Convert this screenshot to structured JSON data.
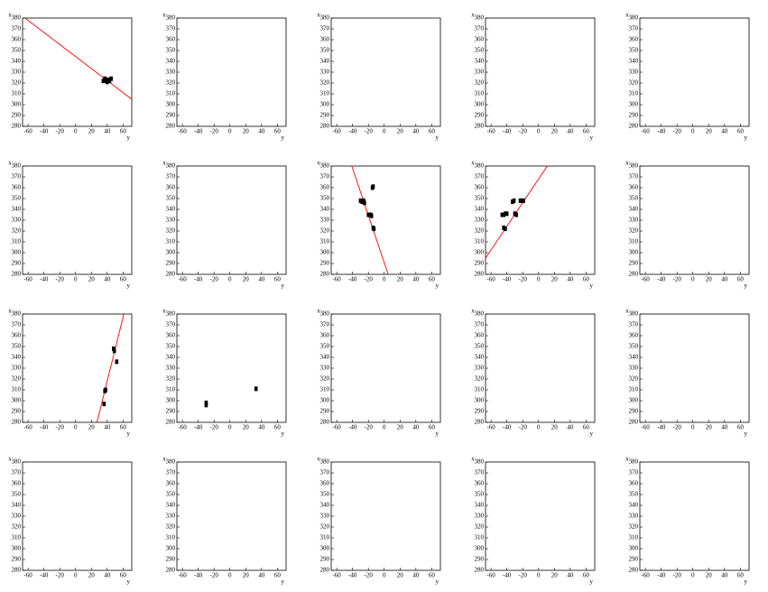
{
  "chart_data": [
    {
      "type": "scatter",
      "xlabel": "y",
      "ylabel": "x",
      "xlim": [
        -67,
        71
      ],
      "ylim": [
        280,
        380
      ],
      "xticks": [
        -60,
        -40,
        -20,
        0,
        20,
        40,
        60
      ],
      "yticks": [
        280,
        290,
        300,
        310,
        320,
        330,
        340,
        350,
        360,
        370,
        380
      ],
      "color": "#000000",
      "fit_color": "#ff0000",
      "points": {
        "x": [
          35,
          37,
          39,
          41,
          43,
          45,
          40
        ],
        "y": [
          322,
          324,
          322,
          323,
          322,
          324,
          321
        ]
      },
      "fit": {
        "x": [
          -64,
          71
        ],
        "y": [
          380,
          305
        ]
      }
    },
    {
      "type": "scatter",
      "xlabel": "y",
      "ylabel": "x",
      "xlim": [
        -67,
        71
      ],
      "ylim": [
        280,
        380
      ],
      "xticks": [
        -60,
        -40,
        -20,
        0,
        20,
        40,
        60
      ],
      "yticks": [
        280,
        290,
        300,
        310,
        320,
        330,
        340,
        350,
        360,
        370,
        380
      ],
      "color": "#000000",
      "points": {
        "x": [],
        "y": []
      }
    },
    {
      "type": "scatter",
      "xlabel": "y",
      "ylabel": "x",
      "xlim": [
        -67,
        71
      ],
      "ylim": [
        280,
        380
      ],
      "xticks": [
        -60,
        -40,
        -20,
        0,
        20,
        40,
        60
      ],
      "yticks": [
        280,
        290,
        300,
        310,
        320,
        330,
        340,
        350,
        360,
        370,
        380
      ],
      "color": "#000000",
      "points": {
        "x": [],
        "y": []
      }
    },
    {
      "type": "scatter",
      "xlabel": "y",
      "ylabel": "x",
      "xlim": [
        -67,
        71
      ],
      "ylim": [
        280,
        380
      ],
      "xticks": [
        -60,
        -40,
        -20,
        0,
        20,
        40,
        60
      ],
      "yticks": [
        280,
        290,
        300,
        310,
        320,
        330,
        340,
        350,
        360,
        370,
        380
      ],
      "color": "#000000",
      "points": {
        "x": [],
        "y": []
      }
    },
    {
      "type": "scatter",
      "xlabel": "y",
      "ylabel": "x",
      "xlim": [
        -67,
        71
      ],
      "ylim": [
        280,
        380
      ],
      "xticks": [
        -60,
        -40,
        -20,
        0,
        20,
        40,
        60
      ],
      "yticks": [
        280,
        290,
        300,
        310,
        320,
        330,
        340,
        350,
        360,
        370,
        380
      ],
      "color": "#000000",
      "points": {
        "x": [],
        "y": []
      }
    },
    {
      "type": "scatter",
      "xlabel": "y",
      "ylabel": "x",
      "xlim": [
        -67,
        71
      ],
      "ylim": [
        280,
        380
      ],
      "xticks": [
        -60,
        -40,
        -20,
        0,
        20,
        40,
        60
      ],
      "yticks": [
        280,
        290,
        300,
        310,
        320,
        330,
        340,
        350,
        360,
        370,
        380
      ],
      "color": "#000000",
      "points": {
        "x": [],
        "y": []
      }
    },
    {
      "type": "scatter",
      "xlabel": "y",
      "ylabel": "x",
      "xlim": [
        -67,
        71
      ],
      "ylim": [
        280,
        380
      ],
      "xticks": [
        -60,
        -40,
        -20,
        0,
        20,
        40,
        60
      ],
      "yticks": [
        280,
        290,
        300,
        310,
        320,
        330,
        340,
        350,
        360,
        370,
        380
      ],
      "color": "#000000",
      "points": {
        "x": [],
        "y": []
      }
    },
    {
      "type": "scatter",
      "xlabel": "y",
      "ylabel": "x",
      "xlim": [
        -67,
        71
      ],
      "ylim": [
        280,
        380
      ],
      "xticks": [
        -60,
        -40,
        -20,
        0,
        20,
        40,
        60
      ],
      "yticks": [
        280,
        290,
        300,
        310,
        320,
        330,
        340,
        350,
        360,
        370,
        380
      ],
      "color": "#000000",
      "fit_color": "#ff0000",
      "points": {
        "x": [
          -30,
          -28,
          -26,
          -25,
          -15,
          -14,
          -20,
          -17,
          -16,
          -14,
          -13
        ],
        "y": [
          348,
          347,
          348,
          346,
          360,
          361,
          335,
          335,
          334,
          323,
          322
        ]
      },
      "fit": {
        "x": [
          -41,
          5
        ],
        "y": [
          380,
          280
        ]
      }
    },
    {
      "type": "scatter",
      "xlabel": "y",
      "ylabel": "x",
      "xlim": [
        -67,
        71
      ],
      "ylim": [
        280,
        380
      ],
      "xticks": [
        -60,
        -40,
        -20,
        0,
        20,
        40,
        60
      ],
      "yticks": [
        280,
        290,
        300,
        310,
        320,
        330,
        340,
        350,
        360,
        370,
        380
      ],
      "color": "#000000",
      "fit_color": "#ff0000",
      "points": {
        "x": [
          -46,
          -44,
          -42,
          -40,
          -44,
          -42,
          -33,
          -31,
          -30,
          -28,
          -23,
          -21,
          -19
        ],
        "y": [
          335,
          335,
          336,
          336,
          323,
          322,
          347,
          348,
          336,
          335,
          348,
          348,
          348
        ]
      },
      "fit": {
        "x": [
          -67,
          11
        ],
        "y": [
          295,
          380
        ]
      }
    },
    {
      "type": "scatter",
      "xlabel": "y",
      "ylabel": "x",
      "xlim": [
        -67,
        71
      ],
      "ylim": [
        280,
        380
      ],
      "xticks": [
        -60,
        -40,
        -20,
        0,
        20,
        40,
        60
      ],
      "yticks": [
        280,
        290,
        300,
        310,
        320,
        330,
        340,
        350,
        360,
        370,
        380
      ],
      "color": "#000000",
      "points": {
        "x": [],
        "y": []
      }
    },
    {
      "type": "scatter",
      "xlabel": "y",
      "ylabel": "x",
      "xlim": [
        -67,
        71
      ],
      "ylim": [
        280,
        380
      ],
      "xticks": [
        -60,
        -40,
        -20,
        0,
        20,
        40,
        60
      ],
      "yticks": [
        280,
        290,
        300,
        310,
        320,
        330,
        340,
        350,
        360,
        370,
        380
      ],
      "color": "#000000",
      "fit_color": "#ff0000",
      "points": {
        "x": [
          36,
          38,
          37,
          48,
          49,
          52
        ],
        "y": [
          297,
          310,
          309,
          348,
          346,
          336
        ]
      },
      "fit": {
        "x": [
          27,
          61
        ],
        "y": [
          280,
          380
        ]
      }
    },
    {
      "type": "scatter",
      "xlabel": "y",
      "ylabel": "x",
      "xlim": [
        -67,
        71
      ],
      "ylim": [
        280,
        380
      ],
      "xticks": [
        -60,
        -40,
        -20,
        0,
        20,
        40,
        60
      ],
      "yticks": [
        280,
        290,
        300,
        310,
        320,
        330,
        340,
        350,
        360,
        370,
        380
      ],
      "color": "#000000",
      "points": {
        "x": [
          -30,
          -30,
          33
        ],
        "y": [
          296,
          298,
          311
        ]
      }
    },
    {
      "type": "scatter",
      "xlabel": "y",
      "ylabel": "x",
      "xlim": [
        -67,
        71
      ],
      "ylim": [
        280,
        380
      ],
      "xticks": [
        -60,
        -40,
        -20,
        0,
        20,
        40,
        60
      ],
      "yticks": [
        280,
        290,
        300,
        310,
        320,
        330,
        340,
        350,
        360,
        370,
        380
      ],
      "color": "#000000",
      "points": {
        "x": [],
        "y": []
      }
    },
    {
      "type": "scatter",
      "xlabel": "y",
      "ylabel": "x",
      "xlim": [
        -67,
        71
      ],
      "ylim": [
        280,
        380
      ],
      "xticks": [
        -60,
        -40,
        -20,
        0,
        20,
        40,
        60
      ],
      "yticks": [
        280,
        290,
        300,
        310,
        320,
        330,
        340,
        350,
        360,
        370,
        380
      ],
      "color": "#000000",
      "points": {
        "x": [],
        "y": []
      }
    },
    {
      "type": "scatter",
      "xlabel": "y",
      "ylabel": "x",
      "xlim": [
        -67,
        71
      ],
      "ylim": [
        280,
        380
      ],
      "xticks": [
        -60,
        -40,
        -20,
        0,
        20,
        40,
        60
      ],
      "yticks": [
        280,
        290,
        300,
        310,
        320,
        330,
        340,
        350,
        360,
        370,
        380
      ],
      "color": "#000000",
      "points": {
        "x": [],
        "y": []
      }
    },
    {
      "type": "scatter",
      "xlabel": "y",
      "ylabel": "x",
      "xlim": [
        -67,
        71
      ],
      "ylim": [
        280,
        380
      ],
      "xticks": [
        -60,
        -40,
        -20,
        0,
        20,
        40,
        60
      ],
      "yticks": [
        280,
        290,
        300,
        310,
        320,
        330,
        340,
        350,
        360,
        370,
        380
      ],
      "color": "#000000",
      "points": {
        "x": [],
        "y": []
      }
    },
    {
      "type": "scatter",
      "xlabel": "y",
      "ylabel": "x",
      "xlim": [
        -67,
        71
      ],
      "ylim": [
        280,
        380
      ],
      "xticks": [
        -60,
        -40,
        -20,
        0,
        20,
        40,
        60
      ],
      "yticks": [
        280,
        290,
        300,
        310,
        320,
        330,
        340,
        350,
        360,
        370,
        380
      ],
      "color": "#000000",
      "points": {
        "x": [],
        "y": []
      }
    },
    {
      "type": "scatter",
      "xlabel": "y",
      "ylabel": "x",
      "xlim": [
        -67,
        71
      ],
      "ylim": [
        280,
        380
      ],
      "xticks": [
        -60,
        -40,
        -20,
        0,
        20,
        40,
        60
      ],
      "yticks": [
        280,
        290,
        300,
        310,
        320,
        330,
        340,
        350,
        360,
        370,
        380
      ],
      "color": "#000000",
      "points": {
        "x": [],
        "y": []
      }
    },
    {
      "type": "scatter",
      "xlabel": "y",
      "ylabel": "x",
      "xlim": [
        -67,
        71
      ],
      "ylim": [
        280,
        380
      ],
      "xticks": [
        -60,
        -40,
        -20,
        0,
        20,
        40,
        60
      ],
      "yticks": [
        280,
        290,
        300,
        310,
        320,
        330,
        340,
        350,
        360,
        370,
        380
      ],
      "color": "#000000",
      "points": {
        "x": [],
        "y": []
      }
    },
    {
      "type": "scatter",
      "xlabel": "y",
      "ylabel": "x",
      "xlim": [
        -67,
        71
      ],
      "ylim": [
        280,
        380
      ],
      "xticks": [
        -60,
        -40,
        -20,
        0,
        20,
        40,
        60
      ],
      "yticks": [
        280,
        290,
        300,
        310,
        320,
        330,
        340,
        350,
        360,
        370,
        380
      ],
      "color": "#000000",
      "points": {
        "x": [],
        "y": []
      }
    }
  ]
}
